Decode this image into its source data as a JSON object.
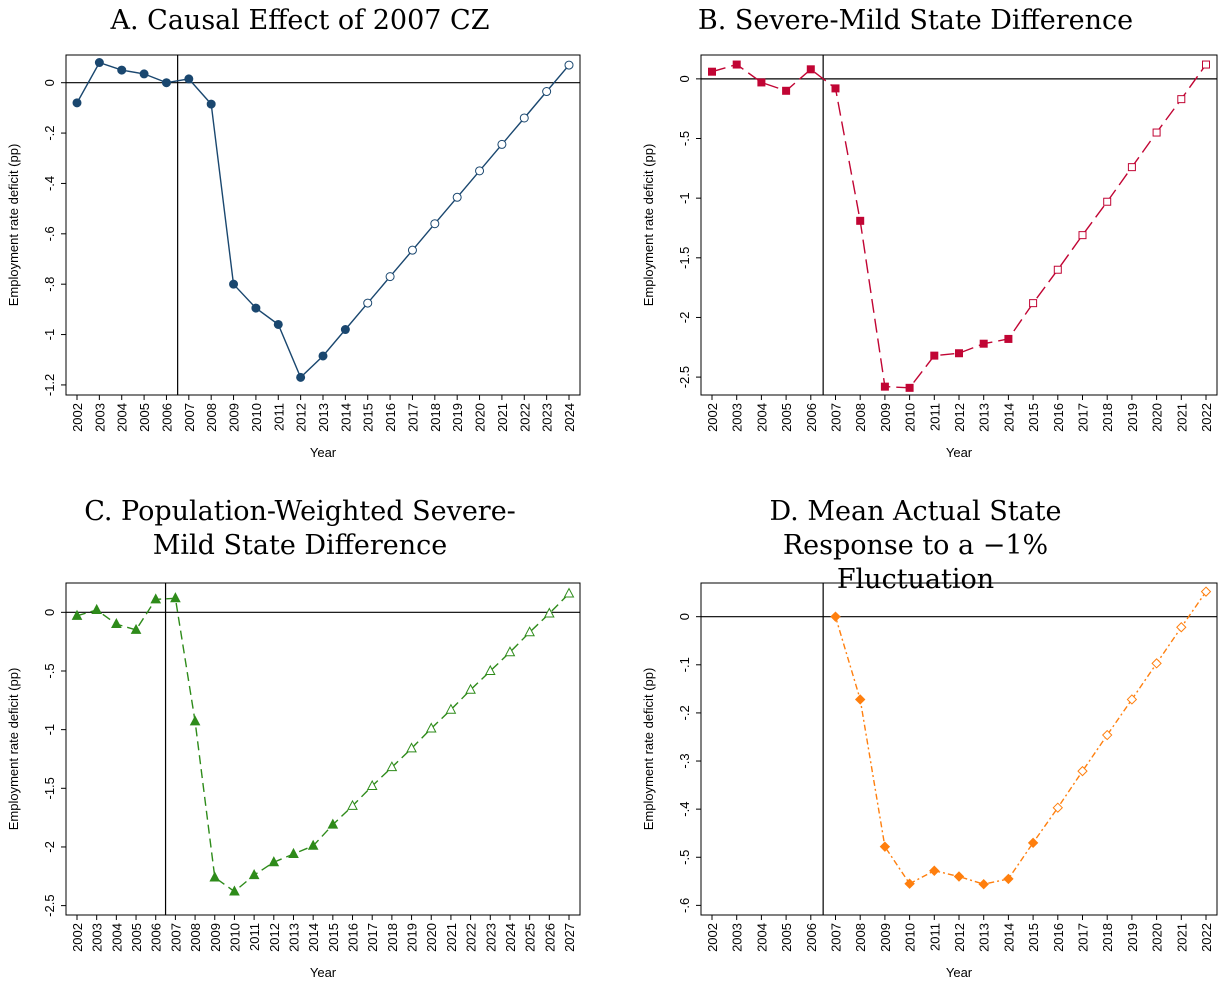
{
  "chart_data": [
    {
      "type": "line",
      "title": "A. Causal Effect of 2007 CZ",
      "xlabel": "Year",
      "ylabel": "Employment rate deficit (pp)",
      "categories": [
        "2002",
        "2003",
        "2004",
        "2005",
        "2006",
        "2007",
        "2008",
        "2009",
        "2010",
        "2011",
        "2012",
        "2013",
        "2014",
        "2015",
        "2016",
        "2017",
        "2018",
        "2019",
        "2020",
        "2021",
        "2022",
        "2023",
        "2024"
      ],
      "ylim": [
        -1.24,
        0.11
      ],
      "yticks": [
        0,
        -0.2,
        -0.4,
        -0.6,
        -0.8,
        -1,
        -1.2
      ],
      "ytick_labels": [
        "0",
        "-.2",
        "-.4",
        "-.6",
        "-.8",
        "-1",
        "-1.2"
      ],
      "vline_x": 2006.5,
      "hline_y": 0,
      "color": "#1a476f",
      "marker": "circle",
      "dash": "",
      "series": [
        {
          "x": [
            2002,
            2003,
            2004,
            2005,
            2006,
            2007,
            2008,
            2009,
            2010,
            2011,
            2012,
            2013,
            2014
          ],
          "values": [
            -0.08,
            0.08,
            0.05,
            0.035,
            0.0,
            0.015,
            -0.085,
            -0.8,
            -0.895,
            -0.96,
            -1.17,
            -1.085,
            -0.98
          ],
          "filled": true
        },
        {
          "x": [
            2015,
            2016,
            2017,
            2018,
            2019,
            2020,
            2021,
            2022,
            2023,
            2024
          ],
          "values": [
            -0.875,
            -0.77,
            -0.665,
            -0.56,
            -0.455,
            -0.35,
            -0.245,
            -0.14,
            -0.035,
            0.07
          ],
          "filled": false
        }
      ]
    },
    {
      "type": "line",
      "title": "B. Severe-Mild State Difference",
      "xlabel": "Year",
      "ylabel": "Employment rate deficit (pp)",
      "categories": [
        "2002",
        "2003",
        "2004",
        "2005",
        "2006",
        "2007",
        "2008",
        "2009",
        "2010",
        "2011",
        "2012",
        "2013",
        "2014",
        "2015",
        "2016",
        "2017",
        "2018",
        "2019",
        "2020",
        "2021",
        "2022"
      ],
      "ylim": [
        -2.65,
        0.2
      ],
      "yticks": [
        0,
        -0.5,
        -1,
        -1.5,
        -2,
        -2.5
      ],
      "ytick_labels": [
        "0",
        "-.5",
        "-1",
        "-1.5",
        "-2",
        "-2.5"
      ],
      "vline_x": 2006.5,
      "hline_y": 0,
      "color": "#c10534",
      "marker": "square",
      "dash": "14 6",
      "series": [
        {
          "x": [
            2002,
            2003,
            2004,
            2005,
            2006,
            2007,
            2008,
            2009,
            2010,
            2011,
            2012,
            2013,
            2014
          ],
          "values": [
            0.06,
            0.12,
            -0.03,
            -0.1,
            0.08,
            -0.08,
            -1.19,
            -2.58,
            -2.59,
            -2.32,
            -2.3,
            -2.22,
            -2.18
          ],
          "filled": true
        },
        {
          "x": [
            2015,
            2016,
            2017,
            2018,
            2019,
            2020,
            2021,
            2022
          ],
          "values": [
            -1.88,
            -1.6,
            -1.31,
            -1.03,
            -0.74,
            -0.45,
            -0.17,
            0.12
          ],
          "filled": false
        }
      ]
    },
    {
      "type": "line",
      "title": "C. Population-Weighted Severe-Mild State Difference",
      "xlabel": "Year",
      "ylabel": "Employment rate deficit (pp)",
      "categories": [
        "2002",
        "2003",
        "2004",
        "2005",
        "2006",
        "2007",
        "2008",
        "2009",
        "2010",
        "2011",
        "2012",
        "2013",
        "2014",
        "2015",
        "2016",
        "2017",
        "2018",
        "2019",
        "2020",
        "2021",
        "2022",
        "2023",
        "2024",
        "2025",
        "2026",
        "2027"
      ],
      "ylim": [
        -2.58,
        0.25
      ],
      "yticks": [
        0,
        -0.5,
        -1,
        -1.5,
        -2,
        -2.5
      ],
      "ytick_labels": [
        "0",
        "-.5",
        "-1",
        "-1.5",
        "-2",
        "-2.5"
      ],
      "vline_x": 2006.5,
      "hline_y": 0,
      "color": "#2e8b1a",
      "marker": "triangle",
      "dash": "9 5",
      "series": [
        {
          "x": [
            2002,
            2003,
            2004,
            2005,
            2006,
            2007,
            2008,
            2009,
            2010,
            2011,
            2012,
            2013,
            2014,
            2015
          ],
          "values": [
            -0.03,
            0.02,
            -0.1,
            -0.15,
            0.11,
            0.12,
            -0.93,
            -2.26,
            -2.38,
            -2.24,
            -2.13,
            -2.06,
            -1.99,
            -1.81
          ],
          "filled": true
        },
        {
          "x": [
            2016,
            2017,
            2018,
            2019,
            2020,
            2021,
            2022,
            2023,
            2024,
            2025,
            2026,
            2027
          ],
          "values": [
            -1.65,
            -1.48,
            -1.32,
            -1.16,
            -0.99,
            -0.83,
            -0.66,
            -0.5,
            -0.34,
            -0.17,
            -0.01,
            0.16
          ],
          "filled": false
        }
      ]
    },
    {
      "type": "line",
      "title": "D. Mean Actual State Response to a −1% Fluctuation",
      "xlabel": "Year",
      "ylabel": "Employment rate deficit (pp)",
      "categories": [
        "2002",
        "2003",
        "2004",
        "2005",
        "2006",
        "2007",
        "2008",
        "2009",
        "2010",
        "2011",
        "2012",
        "2013",
        "2014",
        "2015",
        "2016",
        "2017",
        "2018",
        "2019",
        "2020",
        "2021",
        "2022"
      ],
      "ylim": [
        -0.62,
        0.07
      ],
      "yticks": [
        0,
        -0.1,
        -0.2,
        -0.3,
        -0.4,
        -0.5,
        -0.6
      ],
      "ytick_labels": [
        "0",
        "-.1",
        "-.2",
        "-.3",
        "-.4",
        "-.5",
        "-.6"
      ],
      "vline_x": 2006.5,
      "hline_y": 0,
      "color": "#ff7f0e",
      "marker": "diamond",
      "dash": "6 3 2 3",
      "series": [
        {
          "x": [
            2007,
            2008,
            2009,
            2010,
            2011,
            2012,
            2013,
            2014,
            2015
          ],
          "values": [
            0.0,
            -0.172,
            -0.478,
            -0.555,
            -0.528,
            -0.54,
            -0.556,
            -0.545,
            -0.47
          ],
          "filled": true
        },
        {
          "x": [
            2016,
            2017,
            2018,
            2019,
            2020,
            2021,
            2022
          ],
          "values": [
            -0.397,
            -0.321,
            -0.246,
            -0.172,
            -0.097,
            -0.022,
            0.052
          ],
          "filled": false
        }
      ]
    }
  ]
}
